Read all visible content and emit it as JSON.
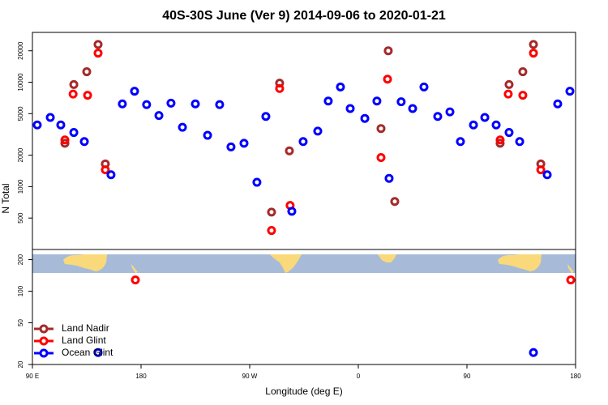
{
  "chart_data": [
    {
      "type": "scatter",
      "title": "40S-30S June (Ver 9)   2014-09-06 to 2020-01-21",
      "y_label": "N Total",
      "log_y": true,
      "xlim": [
        90,
        540
      ],
      "ylim": [
        250,
        30000
      ],
      "yticks": [
        500,
        1000,
        2000,
        5000,
        10000,
        20000
      ],
      "series": [
        {
          "color": "#a52a2a",
          "x": [
            116.9,
            124.3,
            135.0,
            144.4,
            150.4,
            288.1,
            294.8,
            302.9,
            378.8,
            384.8,
            390.2,
            477.5,
            484.9,
            496.3,
            505.1,
            511.2
          ],
          "values": [
            2600,
            9500,
            12600,
            23000,
            1650,
            570,
            9800,
            2200,
            3600,
            20000,
            720,
            2600,
            9500,
            12600,
            23000,
            1650
          ]
        },
        {
          "color": "#ff0000",
          "x": [
            116.9,
            123.7,
            135.7,
            144.4,
            150.4,
            288.1,
            294.8,
            303.5,
            378.8,
            384.2,
            477.5,
            484.2,
            496.3,
            505.1,
            511.2
          ],
          "values": [
            2800,
            7700,
            7500,
            19000,
            1450,
            380,
            8700,
            660,
            1900,
            10700,
            2800,
            7700,
            7500,
            19000,
            1450
          ]
        },
        {
          "color": "#0000ff",
          "x": [
            94.0,
            104.8,
            113.5,
            124.3,
            133.0,
            155.1,
            164.5,
            174.6,
            184.6,
            194.8,
            204.8,
            214.3,
            225.0,
            235.1,
            245.1,
            254.5,
            265.3,
            276.0,
            283.4,
            304.9,
            314.3,
            326.4,
            335.1,
            345.2,
            353.3,
            365.4,
            375.4,
            385.5,
            395.5,
            405.0,
            414.4,
            425.8,
            435.9,
            444.6,
            455.4,
            464.8,
            474.2,
            484.9,
            493.7,
            516.5,
            525.2,
            535.3
          ],
          "values": [
            3900,
            4600,
            3900,
            3300,
            2700,
            1300,
            6200,
            8200,
            6100,
            4800,
            6300,
            3700,
            6200,
            3100,
            6100,
            2400,
            2600,
            1100,
            4700,
            580,
            2700,
            3400,
            6600,
            9000,
            5600,
            4500,
            6600,
            1200,
            6500,
            5600,
            9000,
            4700,
            5200,
            2700,
            3900,
            4600,
            3900,
            3300,
            2700,
            1300,
            6200,
            8200
          ]
        }
      ]
    },
    {
      "type": "scatter",
      "x_label": "Longitude (deg E)",
      "log_y": true,
      "xlim": [
        90,
        540
      ],
      "ylim": [
        20,
        250
      ],
      "xticks": [
        {
          "value": 90,
          "label": "90 E"
        },
        {
          "value": 180,
          "label": "180"
        },
        {
          "value": 270,
          "label": "90 W"
        },
        {
          "value": 360,
          "label": "0"
        },
        {
          "value": 450,
          "label": "90"
        },
        {
          "value": 540,
          "label": "180"
        }
      ],
      "yticks": [
        20,
        50,
        100,
        200
      ],
      "legend": "bottom-left",
      "series": [
        {
          "name": "Land Nadir",
          "color": "#a52a2a",
          "x": [],
          "values": []
        },
        {
          "name": "Land Glint",
          "color": "#ff0000",
          "x": [
            175.3,
            536.0
          ],
          "values": [
            128,
            128
          ]
        },
        {
          "name": "Ocean Glint",
          "color": "#0000ff",
          "x": [
            144.4,
            505.1
          ],
          "values": [
            26,
            26
          ]
        }
      ]
    }
  ]
}
